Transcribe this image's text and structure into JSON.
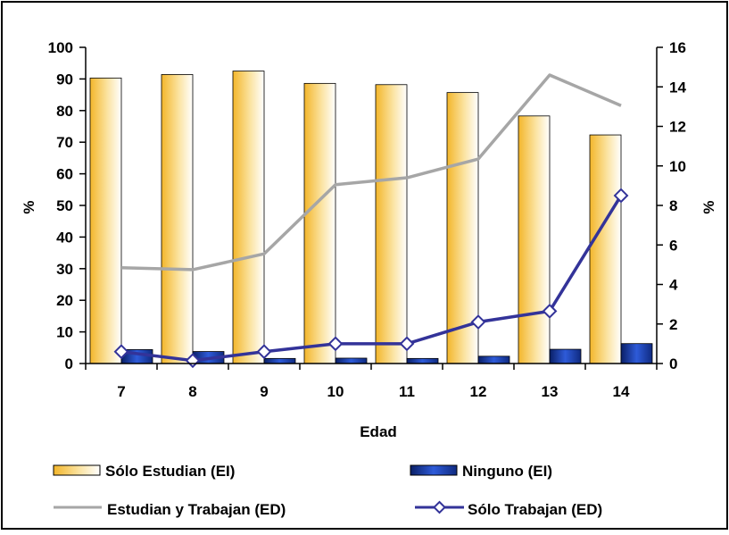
{
  "chart_data": {
    "type": "bar",
    "categories": [
      "7",
      "8",
      "9",
      "10",
      "11",
      "12",
      "13",
      "14"
    ],
    "xlabel": "Edad",
    "ylabel_left": "%",
    "ylabel_right": "%",
    "ylim_left": [
      0,
      100
    ],
    "yticks_left": [
      0,
      10,
      20,
      30,
      40,
      50,
      60,
      70,
      80,
      90,
      100
    ],
    "ylim_right": [
      0,
      16
    ],
    "yticks_right": [
      0,
      2,
      4,
      6,
      8,
      10,
      12,
      14,
      16
    ],
    "grid": false,
    "legend_position": "bottom",
    "series": [
      {
        "name": "Sólo Estudian (EI)",
        "kind": "bar",
        "axis": "left",
        "color": "#F5C24A",
        "values": [
          90.3,
          91.4,
          92.5,
          88.6,
          88.2,
          85.7,
          78.3,
          72.3
        ]
      },
      {
        "name": "Ninguno (EI)",
        "kind": "bar",
        "axis": "left",
        "color": "#1A3C9E",
        "values": [
          4.4,
          3.8,
          1.6,
          1.7,
          1.6,
          2.3,
          4.5,
          6.3
        ]
      },
      {
        "name": "Estudian y Trabajan (ED)",
        "kind": "line",
        "axis": "right",
        "color": "#A6A6A6",
        "values": [
          4.85,
          4.75,
          5.55,
          9.05,
          9.4,
          10.35,
          14.6,
          13.05
        ]
      },
      {
        "name": "Sólo Trabajan (ED)",
        "kind": "line-marker",
        "axis": "right",
        "color": "#333399",
        "values": [
          0.6,
          0.15,
          0.6,
          1.0,
          1.0,
          2.1,
          2.65,
          8.5
        ]
      }
    ]
  }
}
